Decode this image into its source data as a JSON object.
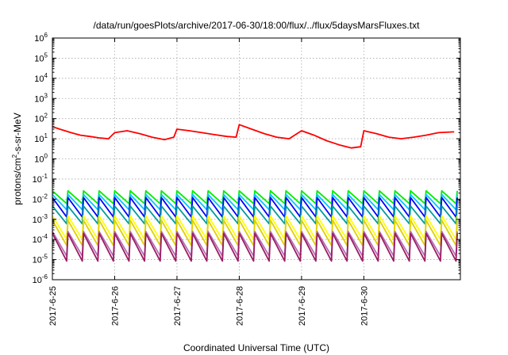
{
  "chart_data": {
    "type": "line",
    "title": "/data/run/goesPlots/archive/2017-06-30/18:00/flux/../flux/5daysMarsFluxes.txt",
    "xlabel": "Coordinated Universal Time (UTC)",
    "ylabel_parts": [
      "protons/cm",
      "2",
      "-s-sr-MeV"
    ],
    "x_ticks": [
      "2017-6-25",
      "2017-6-26",
      "2017-6-27",
      "2017-6-28",
      "2017-6-29",
      "2017-6-30"
    ],
    "x_range": [
      0,
      6.55
    ],
    "y_scale": "log",
    "y_range": [
      1e-06,
      1000000.0
    ],
    "y_tick_exponents": [
      -6,
      -5,
      -4,
      -3,
      -2,
      -1,
      0,
      1,
      2,
      3,
      4,
      5,
      6
    ],
    "y_tick_base": "10",
    "grid": true,
    "series": [
      {
        "color": "#ff0000",
        "periodic": false,
        "points": [
          [
            0.0,
            40
          ],
          [
            0.12,
            30
          ],
          [
            0.3,
            20
          ],
          [
            0.45,
            15
          ],
          [
            0.6,
            13
          ],
          [
            0.75,
            11
          ],
          [
            0.9,
            10
          ],
          [
            1.0,
            20
          ],
          [
            1.2,
            25
          ],
          [
            1.4,
            18
          ],
          [
            1.6,
            12
          ],
          [
            1.8,
            9
          ],
          [
            1.95,
            12
          ],
          [
            2.0,
            30
          ],
          [
            2.2,
            25
          ],
          [
            2.4,
            20
          ],
          [
            2.6,
            16
          ],
          [
            2.8,
            13
          ],
          [
            2.95,
            12
          ],
          [
            3.0,
            50
          ],
          [
            3.2,
            30
          ],
          [
            3.4,
            18
          ],
          [
            3.6,
            12
          ],
          [
            3.8,
            10
          ],
          [
            4.0,
            25
          ],
          [
            4.2,
            15
          ],
          [
            4.4,
            8
          ],
          [
            4.6,
            5
          ],
          [
            4.8,
            3.5
          ],
          [
            4.95,
            4
          ],
          [
            5.0,
            25
          ],
          [
            5.2,
            18
          ],
          [
            5.4,
            12
          ],
          [
            5.6,
            10
          ],
          [
            5.8,
            12
          ],
          [
            6.0,
            15
          ],
          [
            6.2,
            20
          ],
          [
            6.45,
            22
          ]
        ]
      },
      {
        "color": "#00ee00",
        "periodic": true,
        "peak": 0.026,
        "trough": 0.006
      },
      {
        "color": "#00c8ff",
        "periodic": true,
        "peak": 0.017,
        "trough": 0.003
      },
      {
        "color": "#0000ff",
        "periodic": true,
        "peak": 0.012,
        "trough": 0.0013
      },
      {
        "color": "#009c9c",
        "periodic": true,
        "peak": 0.0045,
        "trough": 0.0006
      },
      {
        "color": "#ffff00",
        "periodic": true,
        "peak": 0.0015,
        "trough": 0.0001
      },
      {
        "color": "#e0d000",
        "periodic": true,
        "peak": 0.0009,
        "trough": 5e-05
      },
      {
        "color": "#b46eb4",
        "periodic": true,
        "peak": 0.00025,
        "trough": 1.5e-05
      },
      {
        "color": "#9b1e64",
        "periodic": true,
        "peak": 0.0002,
        "trough": 8.5e-06
      }
    ]
  }
}
